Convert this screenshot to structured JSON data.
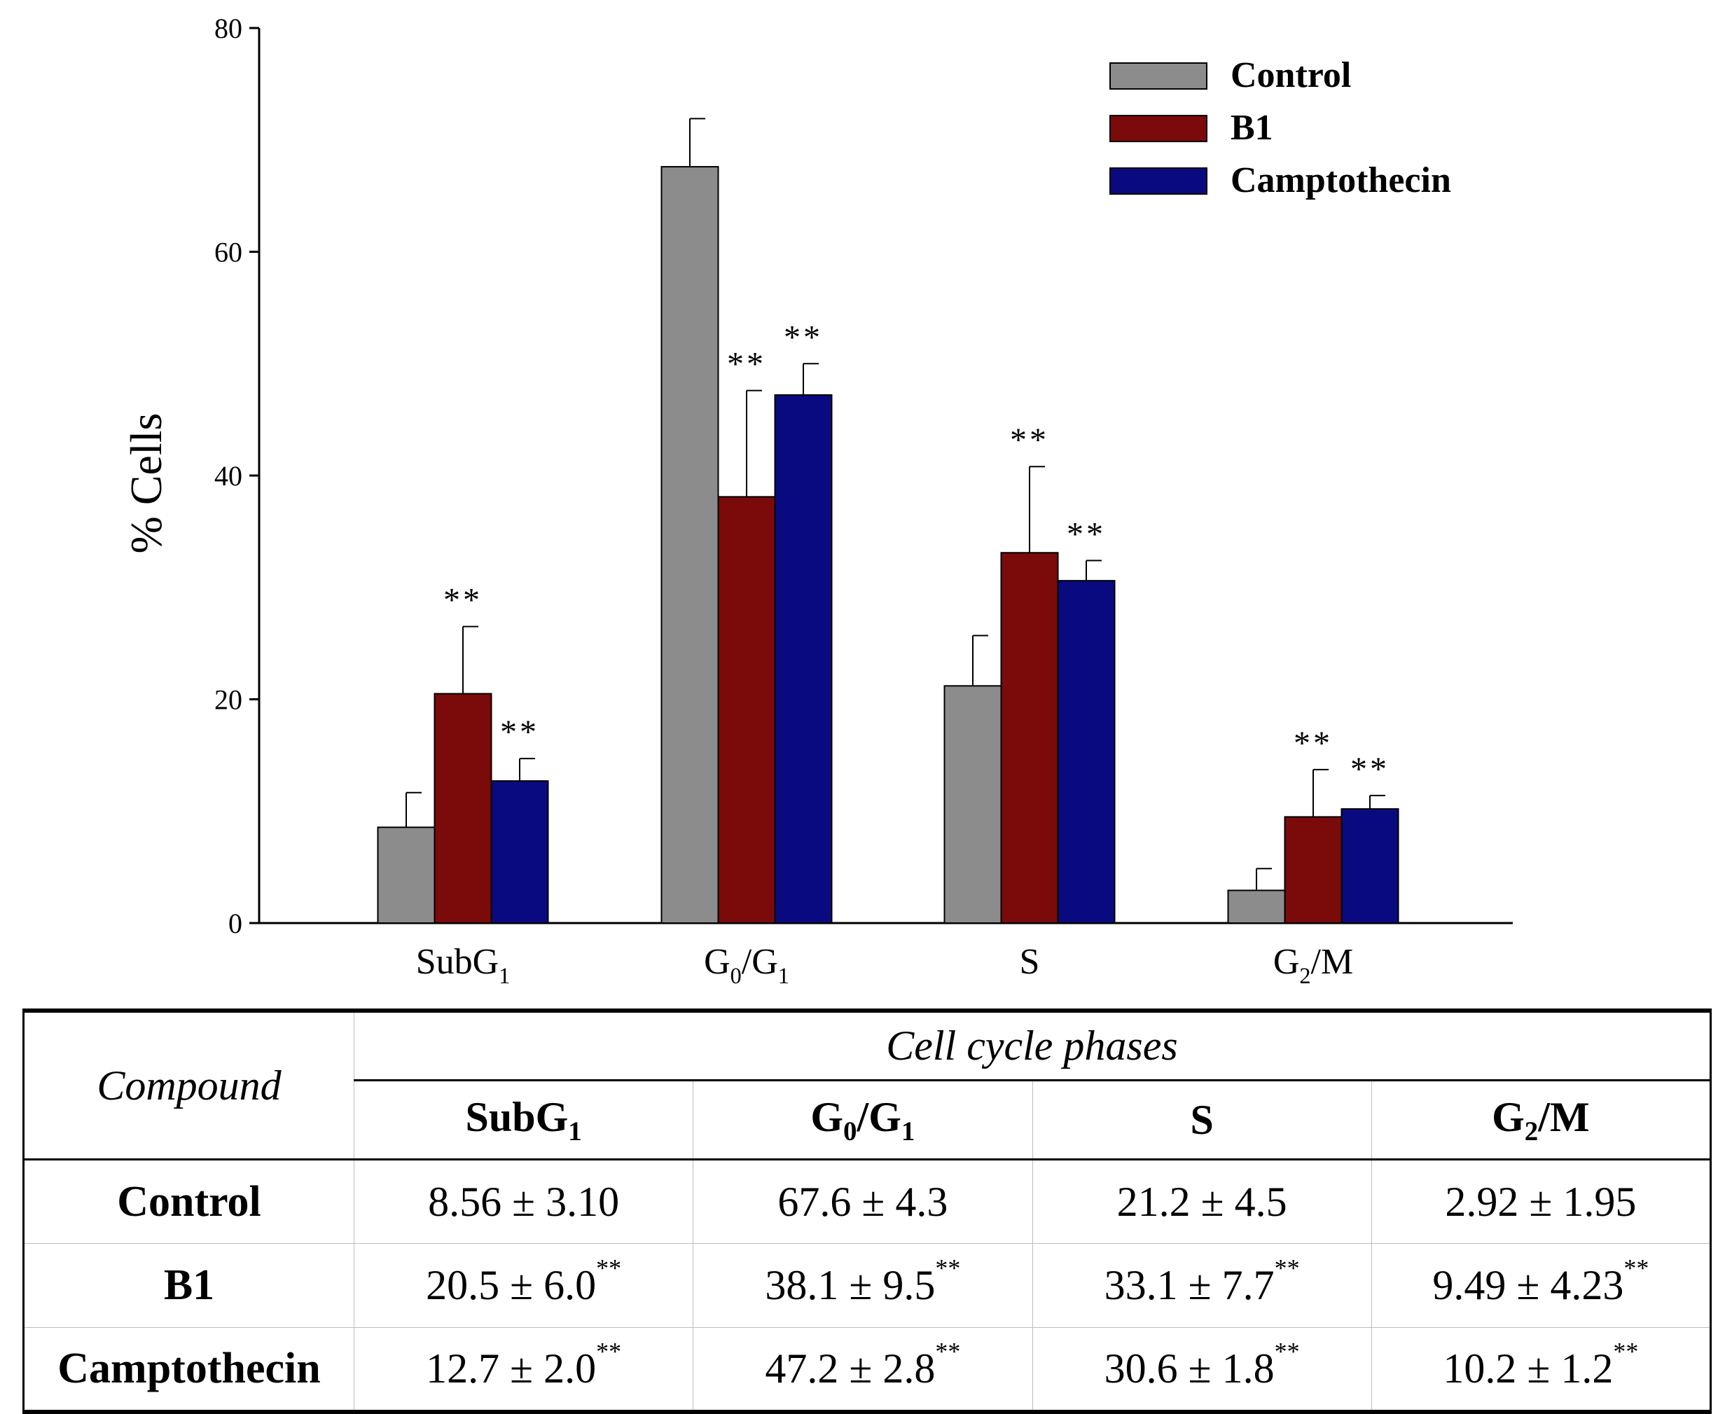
{
  "chart_data": {
    "type": "bar",
    "ylabel": "% Cells",
    "xlabel": "",
    "ylim": [
      0,
      80
    ],
    "yticks": [
      0,
      20,
      40,
      60,
      80
    ],
    "grid": false,
    "legend_position": "top-right",
    "categories": [
      {
        "main": "SubG",
        "sub": "1",
        "tail": ""
      },
      {
        "main": "G",
        "sub": "0",
        "tail": "/G",
        "sub2": "1"
      },
      {
        "main": "S",
        "sub": "",
        "tail": ""
      },
      {
        "main": "G",
        "sub": "2",
        "tail": "/M"
      }
    ],
    "series": [
      {
        "name": "Control",
        "color": "#8c8c8c",
        "values": [
          8.56,
          67.6,
          21.2,
          2.92
        ],
        "errors": [
          3.1,
          4.3,
          4.5,
          1.95
        ],
        "sig": [
          "",
          "",
          "",
          ""
        ]
      },
      {
        "name": "B1",
        "color": "#7b0a0a",
        "values": [
          20.5,
          38.1,
          33.1,
          9.49
        ],
        "errors": [
          6.0,
          9.5,
          7.7,
          4.23
        ],
        "sig": [
          "**",
          "**",
          "**",
          "**"
        ]
      },
      {
        "name": "Camptothecin",
        "color": "#0a0a80",
        "values": [
          12.7,
          47.2,
          30.6,
          10.2
        ],
        "errors": [
          2.0,
          2.8,
          1.8,
          1.2
        ],
        "sig": [
          "**",
          "**",
          "**",
          "**"
        ]
      }
    ]
  },
  "table": {
    "compound_header": "Compound",
    "phases_header": "Cell cycle phases",
    "phase_columns": [
      {
        "main": "SubG",
        "sub": "1",
        "tail": ""
      },
      {
        "main": "G",
        "sub": "0",
        "tail": "/G",
        "sub2": "1"
      },
      {
        "main": "S",
        "sub": "",
        "tail": ""
      },
      {
        "main": "G",
        "sub": "2",
        "tail": "/M"
      }
    ],
    "rows": [
      {
        "name": "Control",
        "cells": [
          {
            "value": "8.56 ± 3.10",
            "sig": ""
          },
          {
            "value": "67.6 ± 4.3",
            "sig": ""
          },
          {
            "value": "21.2 ± 4.5",
            "sig": ""
          },
          {
            "value": "2.92 ± 1.95",
            "sig": ""
          }
        ]
      },
      {
        "name": "B1",
        "cells": [
          {
            "value": "20.5 ± 6.0",
            "sig": "**"
          },
          {
            "value": "38.1 ± 9.5",
            "sig": "**"
          },
          {
            "value": "33.1 ± 7.7",
            "sig": "**"
          },
          {
            "value": "9.49 ± 4.23",
            "sig": "**"
          }
        ]
      },
      {
        "name": "Camptothecin",
        "cells": [
          {
            "value": "12.7 ± 2.0",
            "sig": "**"
          },
          {
            "value": "47.2 ± 2.8",
            "sig": "**"
          },
          {
            "value": "30.6 ± 1.8",
            "sig": "**"
          },
          {
            "value": "10.2 ± 1.2",
            "sig": "**"
          }
        ]
      }
    ]
  }
}
